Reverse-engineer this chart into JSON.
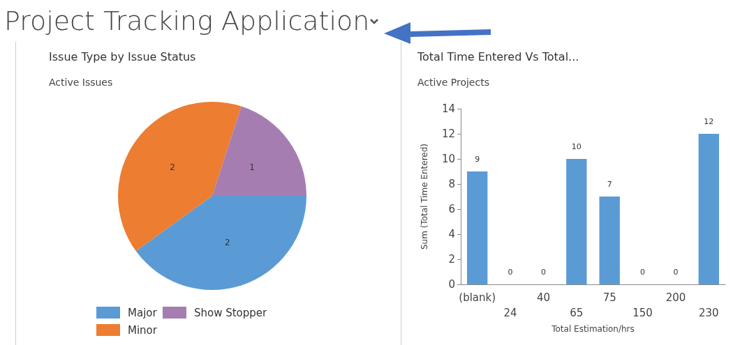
{
  "chart_data": [
    {
      "type": "pie",
      "title": "Issue Type by Issue Status",
      "subtitle": "Active Issues",
      "annotations": [
        "Project Tracking Application"
      ],
      "categories": [
        "Major",
        "Minor",
        "Show Stopper"
      ],
      "values": [
        2,
        2,
        1
      ],
      "colors": [
        "#5b9bd5",
        "#ed7d31",
        "#a67db1"
      ],
      "data_labels": true,
      "legend": "bottom"
    },
    {
      "type": "bar",
      "title": "Total Time Entered Vs Total...",
      "subtitle": "Active Projects",
      "xlabel": "Total Estimation/hrs",
      "ylabel": "Sum (Total Time Entered)",
      "categories": [
        "(blank)",
        "24",
        "40",
        "65",
        "75",
        "150",
        "200",
        "230"
      ],
      "values": [
        9,
        0,
        0,
        10,
        7,
        0,
        0,
        12
      ],
      "color": "#5b9bd5",
      "ylim": [
        0,
        14
      ],
      "yticks": [
        0,
        2,
        4,
        6,
        8,
        10,
        12,
        14
      ],
      "data_labels": true,
      "grid": false
    }
  ]
}
